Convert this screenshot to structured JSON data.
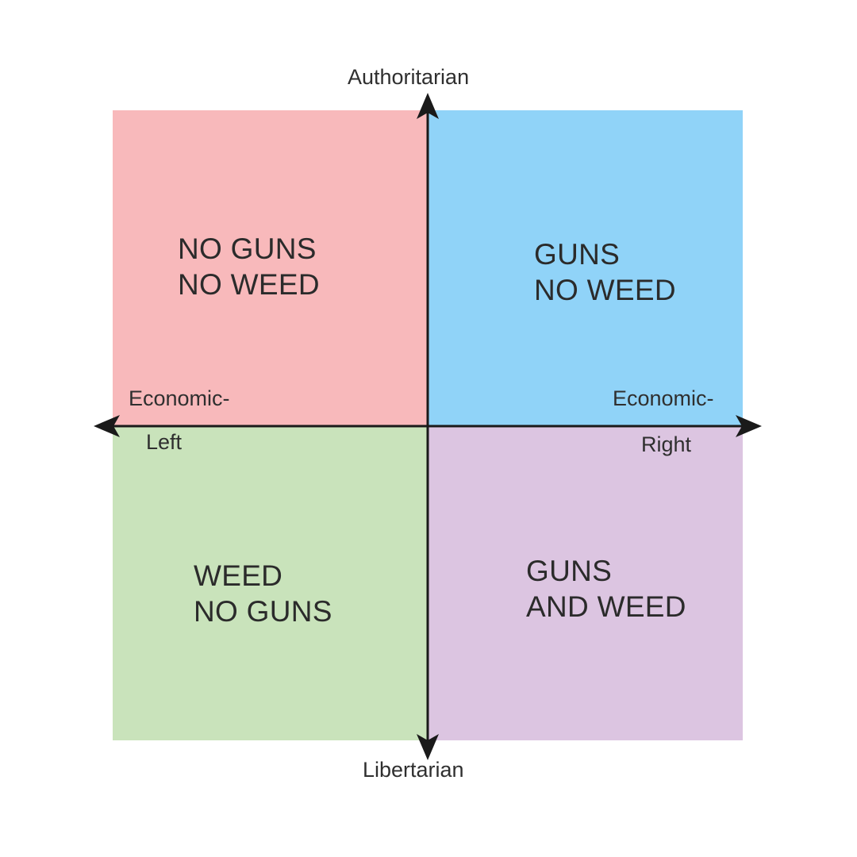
{
  "colors": {
    "top_left": "#f8b9bb",
    "top_right": "#90d3f8",
    "bottom_left": "#c9e3bb",
    "bottom_right": "#dcc5e1",
    "axis": "#1a1a1a"
  },
  "axes": {
    "top": "Authoritarian",
    "bottom": "Libertarian",
    "left_line1": "Economic-",
    "left_line2": "Left",
    "right_line1": "Economic-",
    "right_line2": "Right"
  },
  "quadrants": {
    "top_left": {
      "line1": "NO GUNS",
      "line2": "NO WEED"
    },
    "top_right": {
      "line1": "GUNS",
      "line2": "NO WEED"
    },
    "bottom_left": {
      "line1": "WEED",
      "line2": "NO GUNS"
    },
    "bottom_right": {
      "line1": "GUNS",
      "line2": "AND WEED"
    }
  }
}
